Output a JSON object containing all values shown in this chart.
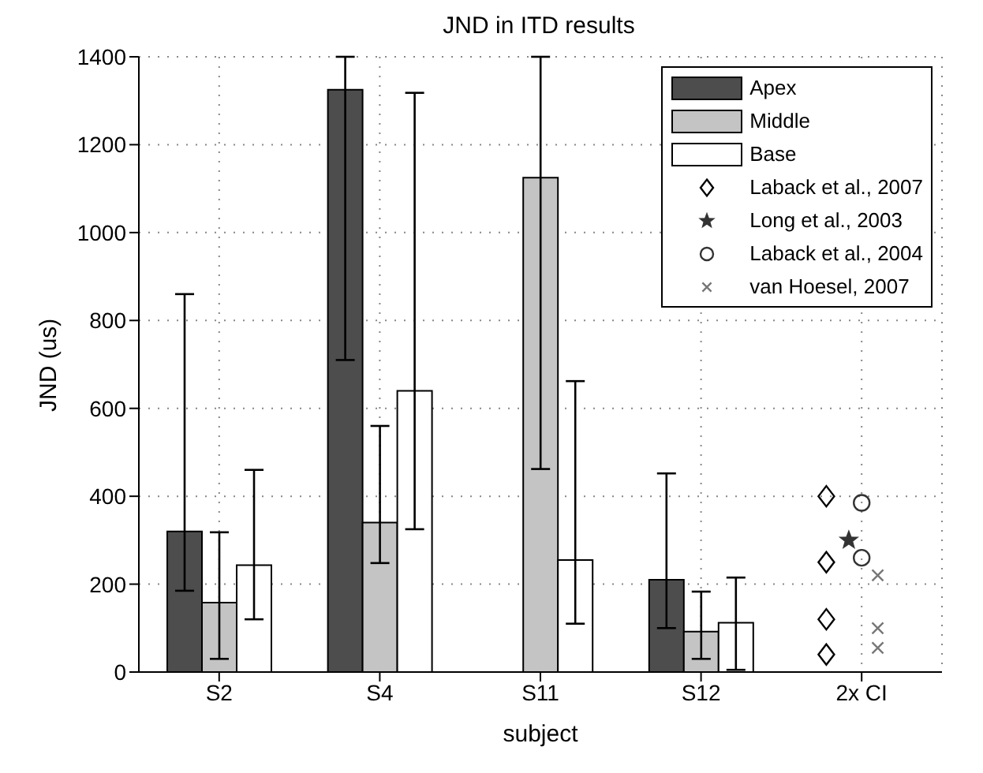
{
  "chart_data": {
    "type": "bar",
    "title": "JND in ITD results",
    "xlabel": "subject",
    "ylabel": "JND (us)",
    "categories": [
      "S2",
      "S4",
      "S11",
      "S12",
      "2x CI"
    ],
    "ylim": [
      0,
      1400
    ],
    "yticks": [
      0,
      200,
      400,
      600,
      800,
      1000,
      1200,
      1400
    ],
    "grid": true,
    "legend": "top right",
    "series": [
      {
        "name": "Apex",
        "color": "#4d4d4d",
        "values": [
          320,
          1325,
          null,
          210,
          null
        ],
        "errors": [
          [
            185,
            860
          ],
          [
            710,
            1400
          ],
          null,
          [
            100,
            452
          ],
          null
        ]
      },
      {
        "name": "Middle",
        "color": "#c4c4c4",
        "values": [
          158,
          340,
          1125,
          92,
          null
        ],
        "errors": [
          [
            30,
            318
          ],
          [
            248,
            560
          ],
          [
            462,
            1400
          ],
          [
            30,
            183
          ],
          null
        ]
      },
      {
        "name": "Base",
        "color": "#ffffff",
        "values": [
          243,
          640,
          255,
          112,
          null
        ],
        "errors": [
          [
            120,
            460
          ],
          [
            325,
            1318
          ],
          [
            110,
            662
          ],
          [
            5,
            215
          ],
          null
        ]
      },
      {
        "name": "Laback et al., 2007",
        "type": "scatter",
        "marker": "diamond",
        "color": "#000000",
        "x": [
          "2x CI",
          "2x CI",
          "2x CI",
          "2x CI"
        ],
        "values": [
          400,
          250,
          120,
          40
        ]
      },
      {
        "name": "Long et al., 2003",
        "type": "scatter",
        "marker": "star",
        "color": "#333333",
        "x": [
          "2x CI"
        ],
        "values": [
          300
        ]
      },
      {
        "name": "Laback et al., 2004",
        "type": "scatter",
        "marker": "circle",
        "color": "#333333",
        "x": [
          "2x CI",
          "2x CI"
        ],
        "values": [
          385,
          260
        ]
      },
      {
        "name": "van Hoesel, 2007",
        "type": "scatter",
        "marker": "cross",
        "color": "#777777",
        "x": [
          "2x CI",
          "2x CI",
          "2x CI"
        ],
        "values": [
          220,
          100,
          55
        ]
      }
    ]
  }
}
